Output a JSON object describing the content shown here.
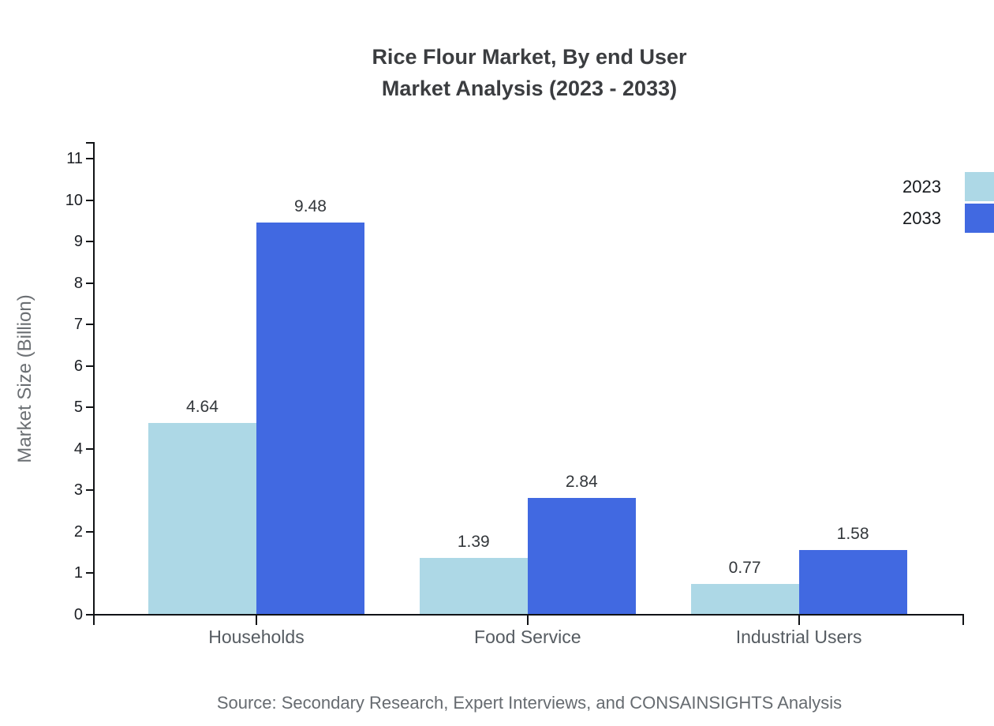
{
  "title": {
    "line1": "Rice Flour Market, By end User",
    "line2": "Market Analysis (2023 - 2033)"
  },
  "source": "Source: Secondary Research, Expert Interviews, and CONSAINSIGHTS Analysis",
  "colors": {
    "series_2023": "#ADD8E6",
    "series_2033": "#4169E1",
    "axis": "#111316"
  },
  "chart_data": {
    "type": "bar",
    "title": "Rice Flour Market, By end User Market Analysis (2023 - 2033)",
    "categories": [
      "Households",
      "Food Service",
      "Industrial Users"
    ],
    "series": [
      {
        "name": "2023",
        "color": "#ADD8E6",
        "values": [
          4.64,
          1.39,
          0.77
        ]
      },
      {
        "name": "2033",
        "color": "#4169E1",
        "values": [
          9.48,
          2.84,
          1.58
        ]
      }
    ],
    "xlabel": "",
    "ylabel": "Market Size (Billion)",
    "ylim": [
      0,
      11
    ],
    "yticks": [
      0,
      1,
      2,
      3,
      4,
      5,
      6,
      7,
      8,
      9,
      10,
      11
    ],
    "grid": false,
    "legend_position": "top-right",
    "value_labels": true,
    "value_label_format": "0.00"
  }
}
